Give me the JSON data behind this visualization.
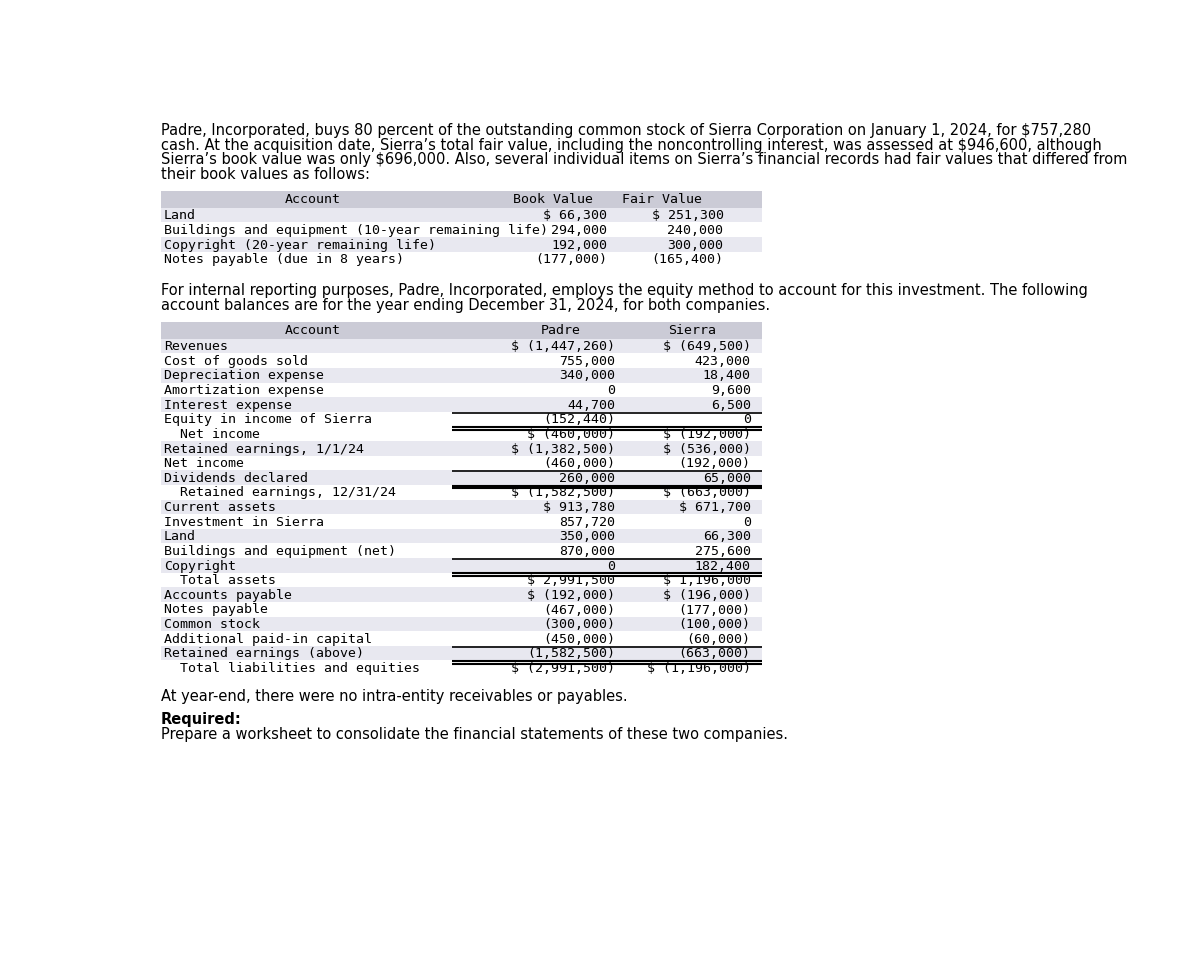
{
  "intro_text": "Padre, Incorporated, buys 80 percent of the outstanding common stock of Sierra Corporation on January 1, 2024, for $757,280\ncash. At the acquisition date, Sierra’s total fair value, including the noncontrolling interest, was assessed at $946,600, although\nSierra’s book value was only $696,000. Also, several individual items on Sierra’s financial records had fair values that differed from\ntheir book values as follows:",
  "table1_header": [
    "Account",
    "Book Value",
    "Fair Value"
  ],
  "table1_rows": [
    [
      "Land",
      "$ 66,300",
      "$ 251,300"
    ],
    [
      "Buildings and equipment (10-year remaining life)",
      "294,000",
      "240,000"
    ],
    [
      "Copyright (20-year remaining life)",
      "192,000",
      "300,000"
    ],
    [
      "Notes payable (due in 8 years)",
      "(177,000)",
      "(165,400)"
    ]
  ],
  "middle_text": "For internal reporting purposes, Padre, Incorporated, employs the equity method to account for this investment. The following\naccount balances are for the year ending December 31, 2024, for both companies.",
  "table2_header": [
    "Account",
    "Padre",
    "Sierra"
  ],
  "table2_sections": [
    {
      "rows": [
        [
          "Revenues",
          "$ (1,447,260)",
          "$ (649,500)"
        ],
        [
          "Cost of goods sold",
          "755,000",
          "423,000"
        ],
        [
          "Depreciation expense",
          "340,000",
          "18,400"
        ],
        [
          "Amortization expense",
          "0",
          "9,600"
        ],
        [
          "Interest expense",
          "44,700",
          "6,500"
        ],
        [
          "Equity in income of Sierra",
          "(152,440)",
          "0"
        ]
      ],
      "subtotal": [
        "  Net income",
        "$ (460,000)",
        "$ (192,000)"
      ]
    },
    {
      "rows": [
        [
          "Retained earnings, 1/1/24",
          "$ (1,382,500)",
          "$ (536,000)"
        ],
        [
          "Net income",
          "(460,000)",
          "(192,000)"
        ],
        [
          "Dividends declared",
          "260,000",
          "65,000"
        ]
      ],
      "subtotal": [
        "  Retained earnings, 12/31/24",
        "$ (1,582,500)",
        "$ (663,000)"
      ]
    },
    {
      "rows": [
        [
          "Current assets",
          "$ 913,780",
          "$ 671,700"
        ],
        [
          "Investment in Sierra",
          "857,720",
          "0"
        ],
        [
          "Land",
          "350,000",
          "66,300"
        ],
        [
          "Buildings and equipment (net)",
          "870,000",
          "275,600"
        ],
        [
          "Copyright",
          "0",
          "182,400"
        ]
      ],
      "subtotal": [
        "  Total assets",
        "$ 2,991,500",
        "$ 1,196,000"
      ]
    },
    {
      "rows": [
        [
          "Accounts payable",
          "$ (192,000)",
          "$ (196,000)"
        ],
        [
          "Notes payable",
          "(467,000)",
          "(177,000)"
        ],
        [
          "Common stock",
          "(300,000)",
          "(100,000)"
        ],
        [
          "Additional paid-in capital",
          "(450,000)",
          "(60,000)"
        ],
        [
          "Retained earnings (above)",
          "(1,582,500)",
          "(663,000)"
        ]
      ],
      "subtotal": [
        "  Total liabilities and equities",
        "$ (2,991,500)",
        "$ (1,196,000)"
      ]
    }
  ],
  "footer_text": "At year-end, there were no intra-entity receivables or payables.",
  "required_label": "Required:",
  "required_text": "Prepare a worksheet to consolidate the financial statements of these two companies.",
  "bg_color": "#ffffff",
  "header_bg": "#cbcbd6",
  "row_alt_bg": "#e8e8f0",
  "row_white_bg": "#ffffff"
}
